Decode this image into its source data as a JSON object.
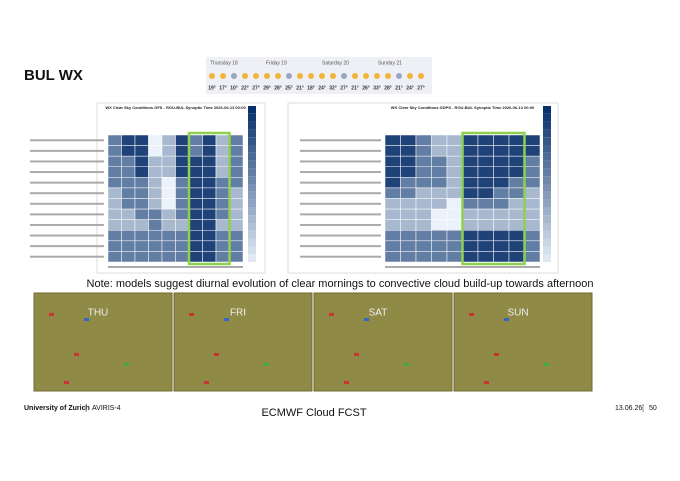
{
  "header": {
    "title": "BUL WX"
  },
  "weather_strip": {
    "days": [
      "Thursday 18",
      "Friday 19",
      "Saturday 20",
      "Sunday 21"
    ],
    "temps": [
      "19°",
      "17°",
      "10°",
      "22°",
      "27°",
      "29°",
      "28°",
      "25°",
      "21°",
      "18°",
      "24°",
      "32°",
      "27°",
      "21°",
      "26°",
      "33°",
      "28°",
      "21°",
      "24°",
      "27°"
    ]
  },
  "heatmaps": [
    {
      "title": "WX Clear Sky Conditions GFS - ROU-BUL Synoptic Time 2026-06-13 00:00",
      "values": [
        [
          60,
          90,
          90,
          0,
          30,
          90,
          60,
          90,
          30,
          60
        ],
        [
          60,
          90,
          90,
          0,
          30,
          90,
          60,
          90,
          30,
          60
        ],
        [
          60,
          60,
          90,
          30,
          30,
          90,
          90,
          90,
          30,
          60
        ],
        [
          60,
          60,
          90,
          30,
          30,
          90,
          90,
          90,
          30,
          60
        ],
        [
          60,
          60,
          60,
          30,
          0,
          60,
          90,
          90,
          60,
          60
        ],
        [
          30,
          60,
          60,
          30,
          0,
          60,
          90,
          90,
          60,
          30
        ],
        [
          30,
          60,
          60,
          30,
          0,
          60,
          90,
          90,
          60,
          30
        ],
        [
          30,
          30,
          60,
          60,
          30,
          60,
          90,
          90,
          60,
          30
        ],
        [
          30,
          30,
          30,
          60,
          30,
          30,
          90,
          90,
          30,
          30
        ],
        [
          60,
          60,
          60,
          60,
          60,
          60,
          90,
          90,
          60,
          60
        ],
        [
          60,
          60,
          60,
          60,
          60,
          60,
          90,
          90,
          60,
          60
        ],
        [
          60,
          60,
          60,
          60,
          60,
          60,
          90,
          90,
          60,
          60
        ]
      ]
    },
    {
      "title": "WX Clear Sky Conditions GDPS - ROU-BUL Synoptic Time 2026-06-13 00:00",
      "values": [
        [
          90,
          90,
          60,
          30,
          30,
          90,
          90,
          90,
          90,
          90
        ],
        [
          90,
          90,
          60,
          30,
          30,
          90,
          90,
          90,
          90,
          90
        ],
        [
          90,
          90,
          60,
          60,
          30,
          90,
          90,
          90,
          90,
          60
        ],
        [
          90,
          90,
          60,
          60,
          30,
          90,
          90,
          90,
          90,
          60
        ],
        [
          90,
          60,
          60,
          60,
          30,
          90,
          90,
          90,
          60,
          60
        ],
        [
          60,
          60,
          30,
          30,
          30,
          90,
          90,
          60,
          60,
          30
        ],
        [
          30,
          30,
          30,
          30,
          0,
          60,
          60,
          60,
          30,
          30
        ],
        [
          30,
          30,
          30,
          0,
          0,
          30,
          30,
          30,
          30,
          30
        ],
        [
          30,
          30,
          30,
          0,
          0,
          30,
          30,
          30,
          30,
          30
        ],
        [
          60,
          60,
          60,
          60,
          60,
          90,
          90,
          90,
          90,
          60
        ],
        [
          60,
          60,
          60,
          60,
          60,
          90,
          90,
          90,
          90,
          60
        ],
        [
          60,
          60,
          60,
          60,
          60,
          90,
          90,
          90,
          90,
          60
        ]
      ]
    }
  ],
  "note": "Note: models suggest diurnal evolution of clear mornings to convective cloud build-up towards afternoon",
  "maps": [
    "THU",
    "FRI",
    "SAT",
    "SUN"
  ],
  "maps_caption": "ECMWF Cloud FCST",
  "footer": {
    "institution": "University of Zurich",
    "project": "AVIRIS-4",
    "date": "13.06.26",
    "page": "50"
  }
}
